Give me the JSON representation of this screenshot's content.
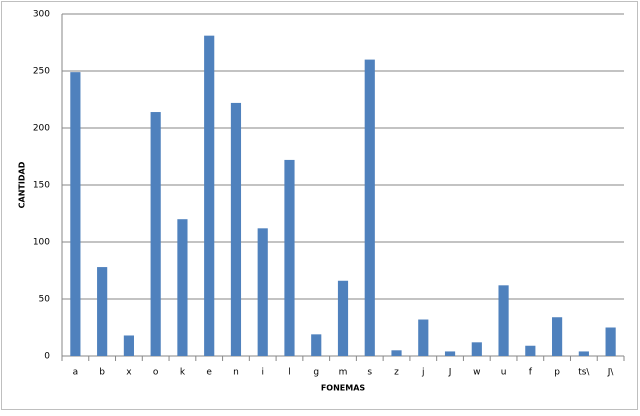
{
  "chart_data": {
    "type": "bar",
    "x_label": "FONEMAS",
    "y_label": "CANTIDAD",
    "categories": [
      "a",
      "b",
      "x",
      "o",
      "k",
      "e",
      "n",
      "i",
      "l",
      "g",
      "m",
      "s",
      "z",
      "j",
      "J",
      "w",
      "u",
      "f",
      "p",
      "ts\\",
      "J\\"
    ],
    "values": [
      249,
      78,
      18,
      214,
      120,
      281,
      222,
      112,
      172,
      19,
      66,
      260,
      5,
      32,
      4,
      12,
      62,
      9,
      34,
      4,
      25
    ],
    "color": "#4f81bd",
    "ylim": [
      0,
      300
    ],
    "yticks": [
      0,
      50,
      100,
      150,
      200,
      250,
      300
    ],
    "grid": true
  }
}
